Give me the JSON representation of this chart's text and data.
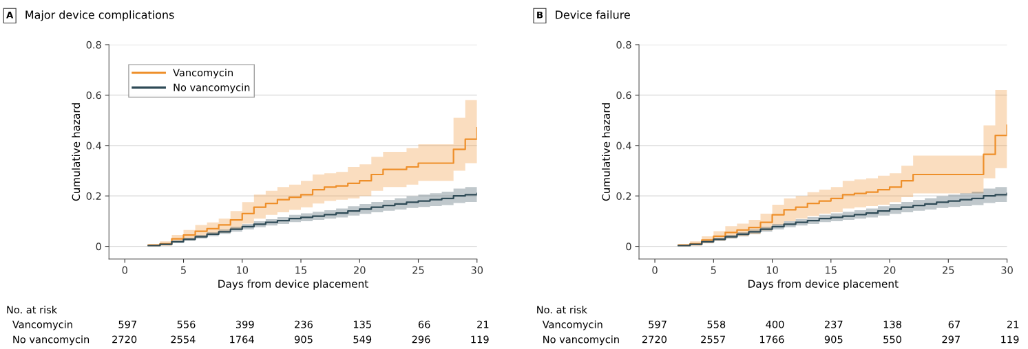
{
  "chart_data": [
    {
      "type": "step",
      "title": "Major device complications",
      "xlabel": "Days from device placement",
      "ylabel": "Cumulative hazard",
      "xlim": [
        -1.35,
        30
      ],
      "xticks": [
        0,
        5,
        10,
        15,
        20,
        25,
        30
      ],
      "ylim": [
        -0.05,
        0.8
      ],
      "yticks": [
        0,
        0.2,
        0.4,
        0.6,
        0.8
      ],
      "grid": "y",
      "legend": "top left",
      "series": [
        {
          "name": "Vancomycin",
          "color": "#ee8f2a",
          "x": [
            2,
            3,
            4,
            5,
            6,
            7,
            8,
            9,
            10,
            11,
            12,
            13,
            14,
            15,
            16,
            17,
            18,
            19,
            20,
            21,
            22,
            23,
            24,
            25,
            26,
            27,
            28,
            29,
            30
          ],
          "values": [
            0.005,
            0.01,
            0.03,
            0.045,
            0.06,
            0.07,
            0.085,
            0.105,
            0.13,
            0.155,
            0.17,
            0.185,
            0.195,
            0.205,
            0.225,
            0.235,
            0.24,
            0.25,
            0.26,
            0.285,
            0.305,
            0.305,
            0.315,
            0.33,
            0.33,
            0.33,
            0.385,
            0.425,
            0.47
          ],
          "lower": [
            0,
            0.002,
            0.015,
            0.025,
            0.035,
            0.045,
            0.055,
            0.07,
            0.09,
            0.11,
            0.125,
            0.135,
            0.145,
            0.155,
            0.17,
            0.18,
            0.185,
            0.19,
            0.2,
            0.22,
            0.235,
            0.235,
            0.245,
            0.26,
            0.26,
            0.26,
            0.3,
            0.33,
            0.35
          ],
          "upper": [
            0.01,
            0.02,
            0.045,
            0.065,
            0.085,
            0.095,
            0.11,
            0.14,
            0.175,
            0.205,
            0.22,
            0.235,
            0.245,
            0.26,
            0.285,
            0.29,
            0.295,
            0.315,
            0.325,
            0.355,
            0.375,
            0.375,
            0.39,
            0.405,
            0.405,
            0.405,
            0.51,
            0.58,
            0.58
          ]
        },
        {
          "name": "No vancomycin",
          "color": "#2e4a56",
          "x": [
            2,
            3,
            4,
            5,
            6,
            7,
            8,
            9,
            10,
            11,
            12,
            13,
            14,
            15,
            16,
            17,
            18,
            19,
            20,
            21,
            22,
            23,
            24,
            25,
            26,
            27,
            28,
            29,
            30
          ],
          "values": [
            0.003,
            0.008,
            0.018,
            0.028,
            0.038,
            0.048,
            0.058,
            0.068,
            0.078,
            0.088,
            0.095,
            0.102,
            0.11,
            0.115,
            0.12,
            0.126,
            0.132,
            0.14,
            0.148,
            0.155,
            0.162,
            0.168,
            0.175,
            0.18,
            0.185,
            0.19,
            0.2,
            0.205,
            0.21
          ],
          "lower": [
            0.001,
            0.005,
            0.013,
            0.022,
            0.031,
            0.04,
            0.049,
            0.058,
            0.067,
            0.076,
            0.083,
            0.089,
            0.096,
            0.1,
            0.105,
            0.11,
            0.115,
            0.122,
            0.129,
            0.135,
            0.141,
            0.146,
            0.152,
            0.156,
            0.16,
            0.164,
            0.172,
            0.176,
            0.18
          ],
          "upper": [
            0.005,
            0.011,
            0.023,
            0.034,
            0.045,
            0.056,
            0.067,
            0.078,
            0.089,
            0.1,
            0.108,
            0.116,
            0.125,
            0.131,
            0.137,
            0.143,
            0.15,
            0.159,
            0.168,
            0.176,
            0.184,
            0.191,
            0.199,
            0.205,
            0.211,
            0.217,
            0.229,
            0.235,
            0.24
          ]
        }
      ],
      "annotations": [
        "A",
        "No. at risk",
        "Vancomycin",
        "597",
        "556",
        "399",
        "236",
        "135",
        "66",
        "21",
        "No vancomycin",
        "2720",
        "2554",
        "1764",
        "905",
        "549",
        "296",
        "119"
      ]
    },
    {
      "type": "step",
      "title": "Device failure",
      "xlabel": "Days from device placement",
      "ylabel": "Cumulative hazard",
      "xlim": [
        -1.35,
        30
      ],
      "xticks": [
        0,
        5,
        10,
        15,
        20,
        25,
        30
      ],
      "ylim": [
        -0.05,
        0.8
      ],
      "yticks": [
        0,
        0.2,
        0.4,
        0.6,
        0.8
      ],
      "grid": "y",
      "series": [
        {
          "color": "#ee8f2a",
          "x": [
            2,
            3,
            4,
            5,
            6,
            7,
            8,
            9,
            10,
            11,
            12,
            13,
            14,
            15,
            16,
            17,
            18,
            19,
            20,
            21,
            22,
            23,
            24,
            25,
            26,
            27,
            28,
            29,
            30
          ],
          "values": [
            0.005,
            0.01,
            0.025,
            0.04,
            0.055,
            0.065,
            0.075,
            0.095,
            0.125,
            0.145,
            0.155,
            0.17,
            0.18,
            0.19,
            0.205,
            0.21,
            0.215,
            0.225,
            0.235,
            0.26,
            0.285,
            0.285,
            0.285,
            0.285,
            0.285,
            0.285,
            0.365,
            0.44,
            0.48
          ],
          "lower": [
            0,
            0.002,
            0.012,
            0.022,
            0.032,
            0.04,
            0.048,
            0.063,
            0.085,
            0.1,
            0.11,
            0.12,
            0.13,
            0.135,
            0.15,
            0.155,
            0.16,
            0.165,
            0.175,
            0.195,
            0.21,
            0.21,
            0.21,
            0.21,
            0.21,
            0.21,
            0.27,
            0.31,
            0.31
          ],
          "upper": [
            0.01,
            0.02,
            0.04,
            0.06,
            0.08,
            0.09,
            0.105,
            0.13,
            0.165,
            0.19,
            0.2,
            0.215,
            0.225,
            0.235,
            0.26,
            0.265,
            0.27,
            0.28,
            0.29,
            0.32,
            0.36,
            0.36,
            0.36,
            0.36,
            0.36,
            0.36,
            0.48,
            0.62,
            0.62
          ]
        },
        {
          "color": "#2e4a56",
          "x": [
            2,
            3,
            4,
            5,
            6,
            7,
            8,
            9,
            10,
            11,
            12,
            13,
            14,
            15,
            16,
            17,
            18,
            19,
            20,
            21,
            22,
            23,
            24,
            25,
            26,
            27,
            28,
            29,
            30
          ],
          "values": [
            0.003,
            0.008,
            0.018,
            0.028,
            0.038,
            0.048,
            0.058,
            0.068,
            0.078,
            0.088,
            0.095,
            0.102,
            0.11,
            0.115,
            0.12,
            0.126,
            0.132,
            0.14,
            0.148,
            0.155,
            0.162,
            0.168,
            0.175,
            0.18,
            0.185,
            0.19,
            0.2,
            0.205,
            0.21
          ],
          "lower": [
            0.001,
            0.005,
            0.013,
            0.022,
            0.031,
            0.04,
            0.049,
            0.058,
            0.067,
            0.076,
            0.083,
            0.089,
            0.096,
            0.1,
            0.105,
            0.11,
            0.115,
            0.122,
            0.129,
            0.135,
            0.141,
            0.146,
            0.152,
            0.156,
            0.16,
            0.164,
            0.172,
            0.176,
            0.18
          ],
          "upper": [
            0.005,
            0.011,
            0.023,
            0.034,
            0.045,
            0.056,
            0.067,
            0.078,
            0.089,
            0.1,
            0.108,
            0.116,
            0.125,
            0.131,
            0.137,
            0.143,
            0.15,
            0.159,
            0.168,
            0.176,
            0.184,
            0.191,
            0.199,
            0.205,
            0.211,
            0.217,
            0.229,
            0.235,
            0.24
          ]
        }
      ],
      "annotations": [
        "B",
        "No. at risk",
        "Vancomycin",
        "597",
        "558",
        "400",
        "237",
        "138",
        "67",
        "21",
        "No vancomycin",
        "2720",
        "2557",
        "1766",
        "905",
        "550",
        "297",
        "119"
      ]
    }
  ]
}
